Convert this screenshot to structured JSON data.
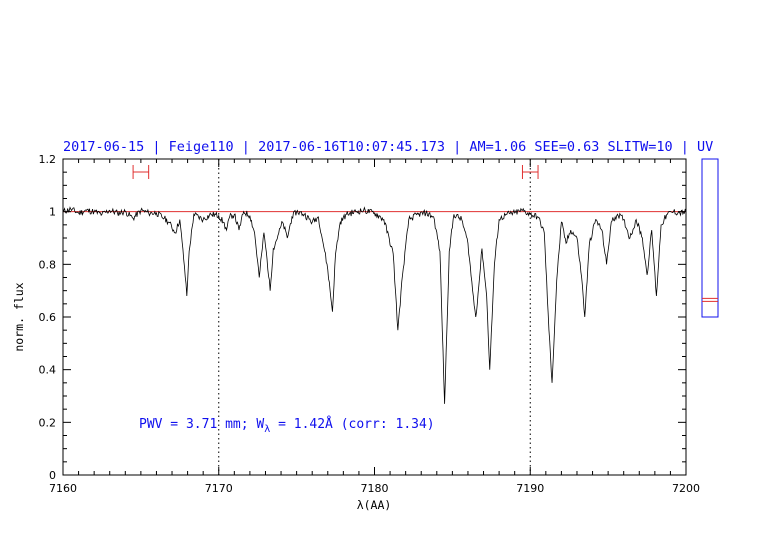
{
  "chart_data": {
    "type": "line",
    "title": "2017-06-15 | Feige110 | 2017-06-16T10:07:45.173 | AM=1.06 SEE=0.63 SLITW=10 | UV",
    "xlabel": "λ(AA)",
    "ylabel": "norm. flux",
    "xlim": [
      7160,
      7200
    ],
    "ylim": [
      0,
      1.2
    ],
    "x_ticks": [
      "7160",
      "7170",
      "7180",
      "7190",
      "7200"
    ],
    "y_ticks": [
      "0",
      "0.2",
      "0.4",
      "0.6",
      "0.8",
      "1",
      "1.2"
    ],
    "annotation": {
      "prefix": "PWV = 3.71 mm; W",
      "subscript": "λ",
      "suffix": " = 1.42Å (corr: 1.34)"
    },
    "continuum_level": 1.0,
    "vertical_reference_lines": [
      7170,
      7190
    ],
    "continuum_windows": [
      [
        7164.5,
        7165.5
      ],
      [
        7189.5,
        7190.5
      ]
    ],
    "side_panel_level": 0.665,
    "series": [
      {
        "points": [
          [
            7160.0,
            1.0
          ],
          [
            7160.5,
            1.01
          ],
          [
            7161.0,
            0.995
          ],
          [
            7161.5,
            1.005
          ],
          [
            7162.0,
            1.0
          ],
          [
            7162.5,
            0.99
          ],
          [
            7163.0,
            1.005
          ],
          [
            7163.5,
            0.995
          ],
          [
            7164.0,
            1.0
          ],
          [
            7164.5,
            0.975
          ],
          [
            7165.0,
            1.005
          ],
          [
            7165.5,
            0.995
          ],
          [
            7166.0,
            0.995
          ],
          [
            7166.5,
            0.975
          ],
          [
            7166.8,
            0.96
          ],
          [
            7167.2,
            0.92
          ],
          [
            7167.5,
            0.97
          ],
          [
            7167.8,
            0.79
          ],
          [
            7167.95,
            0.68
          ],
          [
            7168.1,
            0.85
          ],
          [
            7168.4,
            0.99
          ],
          [
            7169.0,
            0.97
          ],
          [
            7169.5,
            0.99
          ],
          [
            7170.0,
            0.985
          ],
          [
            7170.3,
            0.96
          ],
          [
            7170.5,
            0.93
          ],
          [
            7170.7,
            0.98
          ],
          [
            7171.0,
            0.99
          ],
          [
            7171.3,
            0.93
          ],
          [
            7171.6,
            1.0
          ],
          [
            7172.0,
            0.985
          ],
          [
            7172.3,
            0.92
          ],
          [
            7172.6,
            0.75
          ],
          [
            7172.9,
            0.92
          ],
          [
            7173.1,
            0.82
          ],
          [
            7173.3,
            0.7
          ],
          [
            7173.5,
            0.86
          ],
          [
            7173.8,
            0.91
          ],
          [
            7174.1,
            0.96
          ],
          [
            7174.4,
            0.9
          ],
          [
            7174.7,
            0.98
          ],
          [
            7175.0,
            1.0
          ],
          [
            7175.5,
            0.99
          ],
          [
            7176.0,
            0.96
          ],
          [
            7176.4,
            0.98
          ],
          [
            7176.8,
            0.85
          ],
          [
            7177.0,
            0.78
          ],
          [
            7177.3,
            0.62
          ],
          [
            7177.5,
            0.84
          ],
          [
            7177.8,
            0.96
          ],
          [
            7178.2,
            0.99
          ],
          [
            7178.8,
            1.0
          ],
          [
            7179.3,
            1.005
          ],
          [
            7180.0,
            0.995
          ],
          [
            7180.6,
            0.97
          ],
          [
            7181.2,
            0.84
          ],
          [
            7181.5,
            0.55
          ],
          [
            7181.8,
            0.76
          ],
          [
            7182.2,
            0.97
          ],
          [
            7182.8,
            0.99
          ],
          [
            7183.3,
            0.995
          ],
          [
            7183.8,
            0.98
          ],
          [
            7184.2,
            0.85
          ],
          [
            7184.5,
            0.27
          ],
          [
            7184.8,
            0.85
          ],
          [
            7185.1,
            0.99
          ],
          [
            7185.6,
            0.97
          ],
          [
            7186.0,
            0.88
          ],
          [
            7186.3,
            0.7
          ],
          [
            7186.5,
            0.6
          ],
          [
            7186.7,
            0.72
          ],
          [
            7186.9,
            0.86
          ],
          [
            7187.0,
            0.8
          ],
          [
            7187.2,
            0.68
          ],
          [
            7187.4,
            0.4
          ],
          [
            7187.7,
            0.8
          ],
          [
            7188.0,
            0.97
          ],
          [
            7188.5,
            0.99
          ],
          [
            7189.0,
            0.995
          ],
          [
            7189.5,
            1.005
          ],
          [
            7190.0,
            0.99
          ],
          [
            7190.5,
            0.98
          ],
          [
            7190.9,
            0.92
          ],
          [
            7191.2,
            0.55
          ],
          [
            7191.4,
            0.35
          ],
          [
            7191.7,
            0.74
          ],
          [
            7192.0,
            0.96
          ],
          [
            7192.3,
            0.88
          ],
          [
            7192.6,
            0.93
          ],
          [
            7193.0,
            0.9
          ],
          [
            7193.3,
            0.75
          ],
          [
            7193.5,
            0.6
          ],
          [
            7193.8,
            0.88
          ],
          [
            7194.2,
            0.97
          ],
          [
            7194.6,
            0.93
          ],
          [
            7194.9,
            0.8
          ],
          [
            7195.2,
            0.96
          ],
          [
            7195.6,
            0.99
          ],
          [
            7196.0,
            0.97
          ],
          [
            7196.4,
            0.9
          ],
          [
            7196.8,
            0.97
          ],
          [
            7197.2,
            0.9
          ],
          [
            7197.5,
            0.76
          ],
          [
            7197.8,
            0.93
          ],
          [
            7198.1,
            0.68
          ],
          [
            7198.4,
            0.95
          ],
          [
            7198.8,
            0.99
          ],
          [
            7199.2,
            1.0
          ],
          [
            7199.6,
            0.995
          ],
          [
            7200.0,
            1.0
          ]
        ]
      }
    ]
  }
}
